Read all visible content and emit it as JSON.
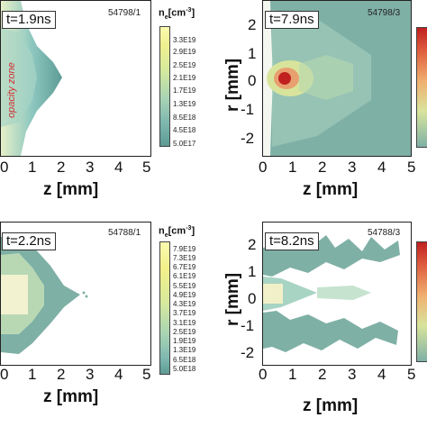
{
  "panels": [
    {
      "time": "t=1.9ns",
      "shot": "54798/1"
    },
    {
      "time": "t=7.9ns",
      "shot": "54798/3"
    },
    {
      "time": "t=2.2ns",
      "shot": "54788/1"
    },
    {
      "time": "t=8.2ns",
      "shot": "54788/3"
    }
  ],
  "axes": {
    "z_label": "z [mm]",
    "r_label": "r [mm]",
    "z_ticks": [
      "0",
      "1",
      "2",
      "3",
      "4",
      "5"
    ],
    "r_ticks": [
      "2",
      "1",
      "0",
      "-1",
      "-2"
    ]
  },
  "colorbars": [
    {
      "title": "n",
      "sub": "e",
      "unit": "[cm",
      "sup": "-3",
      "close": "]",
      "ticks": [
        "3.3E19",
        "2.9E19",
        "2.5E19",
        "2.1E19",
        "1.7E19",
        "1.3E19",
        "8.5E18",
        "4.5E18",
        "5.0E17"
      ]
    },
    {
      "title": "n",
      "sub": "e",
      "unit": "[cm",
      "sup": "-3",
      "close": "]",
      "ticks": [
        "7.9E19",
        "7.3E19",
        "6.7E19",
        "6.1E19",
        "5.5E19",
        "4.9E19",
        "4.3E19",
        "3.7E19",
        "3.1E19",
        "2.5E19",
        "1.9E19",
        "1.3E19",
        "6.5E18",
        "5.0E18"
      ]
    }
  ],
  "annotations": {
    "opacity": "opacity zone"
  },
  "colors": {
    "teal": "#5e9b96",
    "cyan": "#8ec8c0",
    "yellow": "#f3f08a",
    "red": "#c02020",
    "white": "#fbfbf0"
  }
}
